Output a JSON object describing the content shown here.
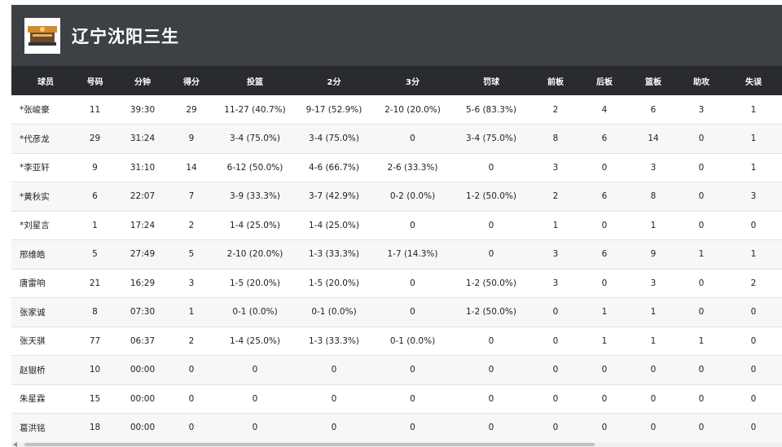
{
  "team": {
    "name": "辽宁沈阳三生",
    "logo_icon": "team-logo-icon"
  },
  "columns": [
    "球员",
    "号码",
    "分钟",
    "得分",
    "投篮",
    "2分",
    "3分",
    "罚球",
    "前板",
    "后板",
    "篮板",
    "助攻",
    "失误"
  ],
  "rows": [
    [
      "*张峻豪",
      "11",
      "39:30",
      "29",
      "11-27 (40.7%)",
      "9-17 (52.9%)",
      "2-10 (20.0%)",
      "5-6 (83.3%)",
      "2",
      "4",
      "6",
      "3",
      "1"
    ],
    [
      "*代彦龙",
      "29",
      "31:24",
      "9",
      "3-4 (75.0%)",
      "3-4 (75.0%)",
      "0",
      "3-4 (75.0%)",
      "8",
      "6",
      "14",
      "0",
      "1"
    ],
    [
      "*李亚轩",
      "9",
      "31:10",
      "14",
      "6-12 (50.0%)",
      "4-6 (66.7%)",
      "2-6 (33.3%)",
      "0",
      "3",
      "0",
      "3",
      "0",
      "1"
    ],
    [
      "*黄秋实",
      "6",
      "22:07",
      "7",
      "3-9 (33.3%)",
      "3-7 (42.9%)",
      "0-2 (0.0%)",
      "1-2 (50.0%)",
      "2",
      "6",
      "8",
      "0",
      "3"
    ],
    [
      "*刘星言",
      "1",
      "17:24",
      "2",
      "1-4 (25.0%)",
      "1-4 (25.0%)",
      "0",
      "0",
      "1",
      "0",
      "1",
      "0",
      "0"
    ],
    [
      "邢维皓",
      "5",
      "27:49",
      "5",
      "2-10 (20.0%)",
      "1-3 (33.3%)",
      "1-7 (14.3%)",
      "0",
      "3",
      "6",
      "9",
      "1",
      "1"
    ],
    [
      "唐雷响",
      "21",
      "16:29",
      "3",
      "1-5 (20.0%)",
      "1-5 (20.0%)",
      "0",
      "1-2 (50.0%)",
      "3",
      "0",
      "3",
      "0",
      "2"
    ],
    [
      "张家诚",
      "8",
      "07:30",
      "1",
      "0-1 (0.0%)",
      "0-1 (0.0%)",
      "0",
      "1-2 (50.0%)",
      "0",
      "1",
      "1",
      "0",
      "0"
    ],
    [
      "张天骐",
      "77",
      "06:37",
      "2",
      "1-4 (25.0%)",
      "1-3 (33.3%)",
      "0-1 (0.0%)",
      "0",
      "0",
      "1",
      "1",
      "1",
      "0"
    ],
    [
      "赵银桥",
      "10",
      "00:00",
      "0",
      "0",
      "0",
      "0",
      "0",
      "0",
      "0",
      "0",
      "0",
      "0"
    ],
    [
      "朱星霖",
      "15",
      "00:00",
      "0",
      "0",
      "0",
      "0",
      "0",
      "0",
      "0",
      "0",
      "0",
      "0"
    ],
    [
      "葛洪铭",
      "18",
      "00:00",
      "0",
      "0",
      "0",
      "0",
      "0",
      "0",
      "0",
      "0",
      "0",
      "0"
    ]
  ],
  "colors": {
    "header_bg": "#3d4044",
    "table_header_bg": "#292b2e"
  }
}
